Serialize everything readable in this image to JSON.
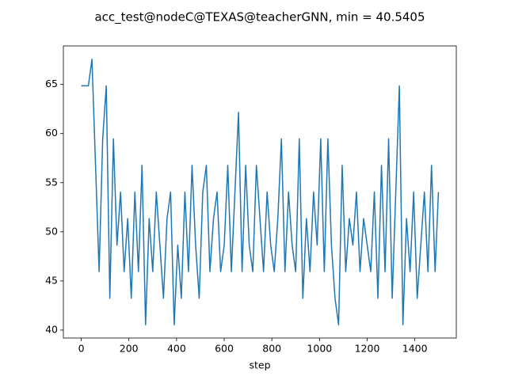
{
  "chart_data": {
    "type": "line",
    "title": "acc_test@nodeC@TEXAS@teacherGNN, min = 40.5405",
    "x_label": "step",
    "color": "#1f77b4",
    "x": [
      0,
      15,
      30,
      45,
      60,
      75,
      90,
      105,
      120,
      135,
      150,
      165,
      180,
      195,
      210,
      225,
      240,
      255,
      270,
      285,
      300,
      315,
      330,
      345,
      360,
      375,
      390,
      405,
      420,
      435,
      450,
      465,
      480,
      495,
      510,
      525,
      540,
      555,
      570,
      585,
      600,
      615,
      630,
      645,
      660,
      675,
      690,
      705,
      720,
      735,
      750,
      765,
      780,
      795,
      810,
      825,
      840,
      855,
      870,
      885,
      900,
      915,
      930,
      945,
      960,
      975,
      990,
      1005,
      1020,
      1035,
      1050,
      1065,
      1080,
      1095,
      1110,
      1125,
      1140,
      1155,
      1170,
      1185,
      1200,
      1215,
      1230,
      1245,
      1260,
      1275,
      1290,
      1305,
      1320,
      1335,
      1350,
      1365,
      1380,
      1395,
      1410,
      1425,
      1440,
      1455,
      1470,
      1485,
      1499
    ],
    "values": [
      64.86,
      64.86,
      64.86,
      67.57,
      56.76,
      45.95,
      59.46,
      64.86,
      43.24,
      59.46,
      48.65,
      54.05,
      45.95,
      51.35,
      43.24,
      54.05,
      45.95,
      56.76,
      40.54,
      51.35,
      45.95,
      54.05,
      48.65,
      43.24,
      51.35,
      54.05,
      40.54,
      48.65,
      43.24,
      54.05,
      45.95,
      56.76,
      48.65,
      43.24,
      54.05,
      56.76,
      45.95,
      51.35,
      54.05,
      45.95,
      48.65,
      56.76,
      45.95,
      54.05,
      62.16,
      45.95,
      56.76,
      48.65,
      45.95,
      56.76,
      51.35,
      45.95,
      54.05,
      48.65,
      45.95,
      51.35,
      59.46,
      45.95,
      54.05,
      48.65,
      45.95,
      59.46,
      43.24,
      51.35,
      45.95,
      54.05,
      48.65,
      59.46,
      45.95,
      59.46,
      48.65,
      43.24,
      40.54,
      56.76,
      45.95,
      51.35,
      48.65,
      54.05,
      45.95,
      51.35,
      48.65,
      45.95,
      54.05,
      43.24,
      56.76,
      45.95,
      59.46,
      43.24,
      54.05,
      64.86,
      40.54,
      51.35,
      45.95,
      54.05,
      43.24,
      48.65,
      54.05,
      45.95,
      56.76,
      45.95,
      54.05
    ],
    "xlim": [
      -75,
      1574
    ],
    "ylim": [
      39.19,
      68.92
    ],
    "xticks": [
      0,
      200,
      400,
      600,
      800,
      1000,
      1200,
      1400
    ],
    "yticks": [
      40,
      45,
      50,
      55,
      60,
      65
    ]
  }
}
